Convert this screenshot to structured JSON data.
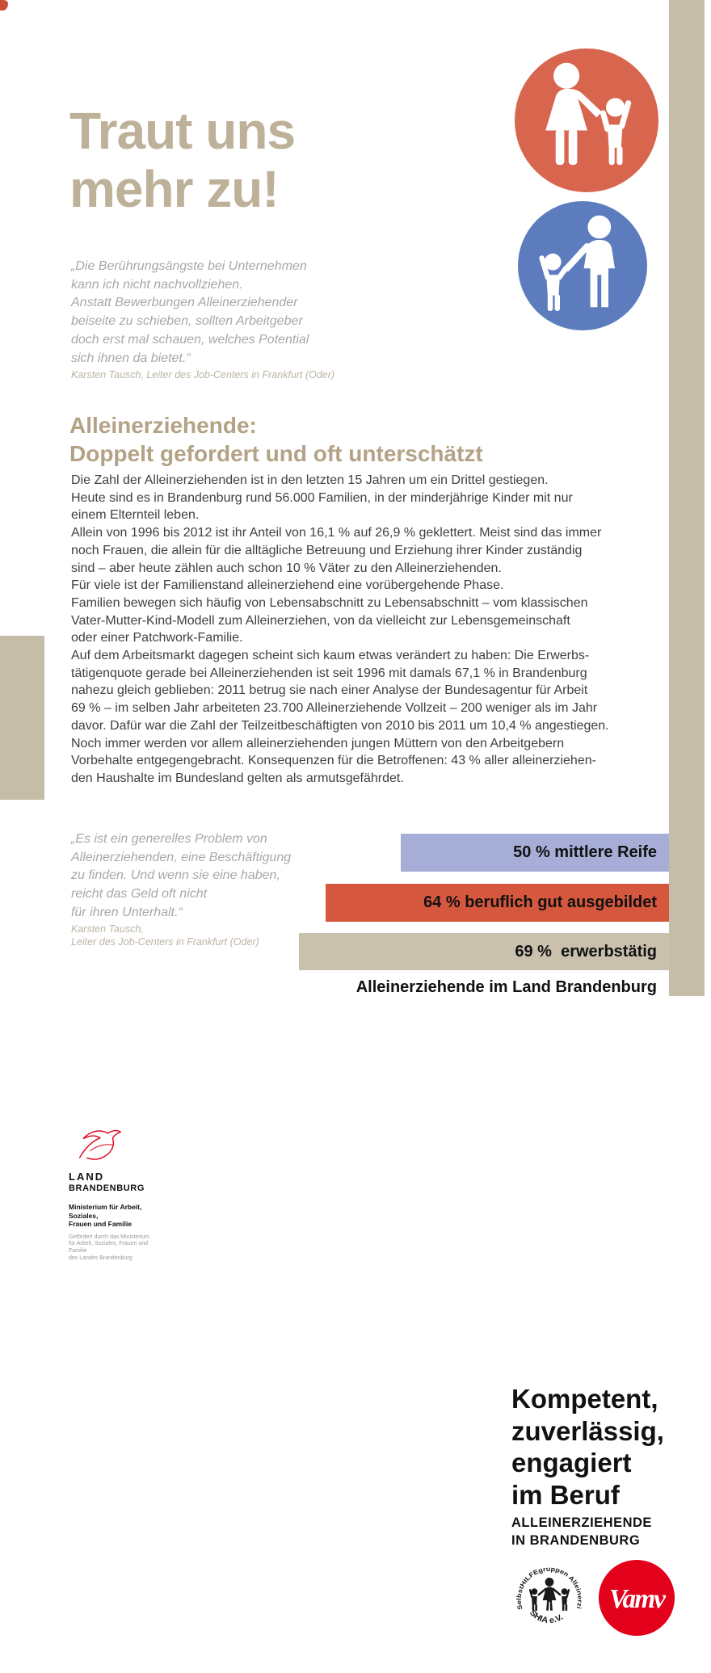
{
  "title": {
    "lines": [
      "Traut uns",
      "mehr zu!"
    ]
  },
  "quote_top": {
    "lines": [
      "„Die Berührungsängste bei Unternehmen",
      "kann ich nicht nachvollziehen.",
      "Anstatt Bewerbungen Alleinerziehender",
      "beiseite zu schieben, sollten Arbeitgeber",
      "doch erst mal schauen, welches Potential",
      "sich ihnen da bietet.“"
    ],
    "attribution": "Karsten Tausch, Leiter des Job-Centers in Frankfurt (Oder)"
  },
  "section_heading": {
    "lines": [
      "Alleinerziehende:",
      "Doppelt gefordert und oft unterschätzt"
    ]
  },
  "body": {
    "lines": [
      "Die Zahl der Alleinerziehenden ist in den letzten 15 Jahren um ein Drittel gestiegen.",
      "Heute sind es in Brandenburg rund 56.000 Familien, in der minderjährige Kinder mit nur",
      "einem Elternteil leben.",
      "Allein von 1996 bis 2012 ist ihr Anteil von 16,1 % auf 26,9 % geklettert. Meist sind das immer",
      "noch Frauen, die allein für die alltägliche Betreuung und Erziehung ihrer Kinder zuständig",
      "sind – aber heute zählen auch schon 10 % Väter zu den Alleinerziehenden.",
      "Für viele ist der Familienstand alleinerziehend eine vorübergehende Phase.",
      "Familien bewegen sich häufig von Lebensabschnitt zu Lebensabschnitt – vom klassischen",
      "Vater-Mutter-Kind-Modell zum Alleinerziehen, von da vielleicht zur Lebensgemeinschaft",
      "oder einer Patchwork-Familie.",
      "Auf dem Arbeitsmarkt dagegen scheint sich kaum etwas verändert zu haben: Die Erwerbs-",
      "tätigenquote gerade bei Alleinerziehenden ist seit 1996 mit damals 67,1 % in Brandenburg",
      "nahezu gleich geblieben: 2011 betrug sie nach einer Analyse der Bundesagentur für Arbeit",
      "69 % – im selben Jahr arbeiteten 23.700 Alleinerziehende Vollzeit – 200 weniger als im Jahr",
      "davor. Dafür war die Zahl der Teilzeitbeschäftigten von 2010 bis 2011 um 10,4 % angestiegen.",
      "Noch immer werden vor allem alleinerziehenden jungen Müttern von den Arbeitgebern",
      "Vorbehalte entgegengebracht. Konsequenzen für die Betroffenen: 43 % aller alleinerziehen-",
      "den Haushalte im Bundesland gelten als armutsgefährdet."
    ]
  },
  "quote_bottom": {
    "lines": [
      "„Es ist ein generelles Problem von",
      "Alleinerziehenden, eine Beschäftigung",
      "zu finden. Und wenn sie eine haben,",
      "reicht das Geld oft nicht",
      "für ihren Unterhalt.“"
    ],
    "attribution_lines": [
      "Karsten Tausch,",
      "Leiter des Job-Centers in Frankfurt (Oder)"
    ]
  },
  "chart_data": {
    "type": "bar",
    "orientation": "horizontal-right-aligned",
    "series": [
      {
        "label": "50 % mittlere Reife",
        "value": 50,
        "color": "#a6aed7"
      },
      {
        "label": "64 % beruflich gut ausgebildet",
        "value": 64,
        "color": "#d4573e"
      },
      {
        "label": "69 %  erwerbstätig",
        "value": 69,
        "color": "#c9c1ae"
      }
    ],
    "xlim": [
      0,
      100
    ],
    "caption": "Alleinerziehende im Land Brandenburg"
  },
  "footer": {
    "slogan_lines": [
      "Kompetent,",
      "zuverlässig,",
      "engagiert",
      "im Beruf"
    ],
    "org_lines": [
      "ALLEINERZIEHENDE",
      "IN BRANDENBURG"
    ],
    "shia_logo": {
      "arc_text": "SelbstHILFEgruppen Alleinerziehender",
      "bottom_text": "SHIA e.V."
    },
    "vamv_logo": {
      "text": "Vamv"
    },
    "brandenburg_logo": {
      "land_lines": [
        "LAND",
        "BRANDENBURG"
      ],
      "ministry_lines": [
        "Ministerium für Arbeit, Soziales,",
        "Frauen und Familie"
      ],
      "funding_lines": [
        "Gefördert durch das Ministerium",
        "für Arbeit, Soziales, Frauen und Familie",
        "des Landes Brandenburg"
      ]
    }
  },
  "colors": {
    "accent_tan": "#c6bda9",
    "title_tan": "#beb199",
    "heading_tan": "#b3a285",
    "badge_orange": "#d8664e",
    "badge_blue": "#5d7cbe",
    "logo_red": "#e2001a",
    "quote_gray": "#a8a8a8"
  }
}
